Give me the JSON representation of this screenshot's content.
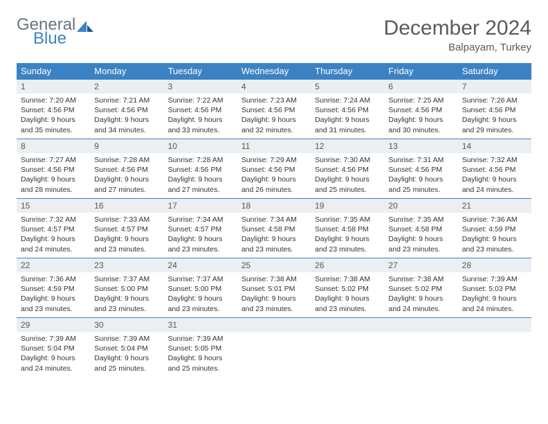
{
  "brand": {
    "word1": "General",
    "word2": "Blue",
    "accent_color": "#3b82c4",
    "gray_color": "#6b7280"
  },
  "title": "December 2024",
  "location": "Balpayam, Turkey",
  "colors": {
    "header_bg": "#3b82c4",
    "header_text": "#ffffff",
    "daynum_bg": "#eceff1",
    "rule": "#3b82c4",
    "text": "#333333"
  },
  "weekdays": [
    "Sunday",
    "Monday",
    "Tuesday",
    "Wednesday",
    "Thursday",
    "Friday",
    "Saturday"
  ],
  "weeks": [
    [
      {
        "n": "1",
        "sunrise": "Sunrise: 7:20 AM",
        "sunset": "Sunset: 4:56 PM",
        "day": "Daylight: 9 hours and 35 minutes."
      },
      {
        "n": "2",
        "sunrise": "Sunrise: 7:21 AM",
        "sunset": "Sunset: 4:56 PM",
        "day": "Daylight: 9 hours and 34 minutes."
      },
      {
        "n": "3",
        "sunrise": "Sunrise: 7:22 AM",
        "sunset": "Sunset: 4:56 PM",
        "day": "Daylight: 9 hours and 33 minutes."
      },
      {
        "n": "4",
        "sunrise": "Sunrise: 7:23 AM",
        "sunset": "Sunset: 4:56 PM",
        "day": "Daylight: 9 hours and 32 minutes."
      },
      {
        "n": "5",
        "sunrise": "Sunrise: 7:24 AM",
        "sunset": "Sunset: 4:56 PM",
        "day": "Daylight: 9 hours and 31 minutes."
      },
      {
        "n": "6",
        "sunrise": "Sunrise: 7:25 AM",
        "sunset": "Sunset: 4:56 PM",
        "day": "Daylight: 9 hours and 30 minutes."
      },
      {
        "n": "7",
        "sunrise": "Sunrise: 7:26 AM",
        "sunset": "Sunset: 4:56 PM",
        "day": "Daylight: 9 hours and 29 minutes."
      }
    ],
    [
      {
        "n": "8",
        "sunrise": "Sunrise: 7:27 AM",
        "sunset": "Sunset: 4:56 PM",
        "day": "Daylight: 9 hours and 28 minutes."
      },
      {
        "n": "9",
        "sunrise": "Sunrise: 7:28 AM",
        "sunset": "Sunset: 4:56 PM",
        "day": "Daylight: 9 hours and 27 minutes."
      },
      {
        "n": "10",
        "sunrise": "Sunrise: 7:28 AM",
        "sunset": "Sunset: 4:56 PM",
        "day": "Daylight: 9 hours and 27 minutes."
      },
      {
        "n": "11",
        "sunrise": "Sunrise: 7:29 AM",
        "sunset": "Sunset: 4:56 PM",
        "day": "Daylight: 9 hours and 26 minutes."
      },
      {
        "n": "12",
        "sunrise": "Sunrise: 7:30 AM",
        "sunset": "Sunset: 4:56 PM",
        "day": "Daylight: 9 hours and 25 minutes."
      },
      {
        "n": "13",
        "sunrise": "Sunrise: 7:31 AM",
        "sunset": "Sunset: 4:56 PM",
        "day": "Daylight: 9 hours and 25 minutes."
      },
      {
        "n": "14",
        "sunrise": "Sunrise: 7:32 AM",
        "sunset": "Sunset: 4:56 PM",
        "day": "Daylight: 9 hours and 24 minutes."
      }
    ],
    [
      {
        "n": "15",
        "sunrise": "Sunrise: 7:32 AM",
        "sunset": "Sunset: 4:57 PM",
        "day": "Daylight: 9 hours and 24 minutes."
      },
      {
        "n": "16",
        "sunrise": "Sunrise: 7:33 AM",
        "sunset": "Sunset: 4:57 PM",
        "day": "Daylight: 9 hours and 23 minutes."
      },
      {
        "n": "17",
        "sunrise": "Sunrise: 7:34 AM",
        "sunset": "Sunset: 4:57 PM",
        "day": "Daylight: 9 hours and 23 minutes."
      },
      {
        "n": "18",
        "sunrise": "Sunrise: 7:34 AM",
        "sunset": "Sunset: 4:58 PM",
        "day": "Daylight: 9 hours and 23 minutes."
      },
      {
        "n": "19",
        "sunrise": "Sunrise: 7:35 AM",
        "sunset": "Sunset: 4:58 PM",
        "day": "Daylight: 9 hours and 23 minutes."
      },
      {
        "n": "20",
        "sunrise": "Sunrise: 7:35 AM",
        "sunset": "Sunset: 4:58 PM",
        "day": "Daylight: 9 hours and 23 minutes."
      },
      {
        "n": "21",
        "sunrise": "Sunrise: 7:36 AM",
        "sunset": "Sunset: 4:59 PM",
        "day": "Daylight: 9 hours and 23 minutes."
      }
    ],
    [
      {
        "n": "22",
        "sunrise": "Sunrise: 7:36 AM",
        "sunset": "Sunset: 4:59 PM",
        "day": "Daylight: 9 hours and 23 minutes."
      },
      {
        "n": "23",
        "sunrise": "Sunrise: 7:37 AM",
        "sunset": "Sunset: 5:00 PM",
        "day": "Daylight: 9 hours and 23 minutes."
      },
      {
        "n": "24",
        "sunrise": "Sunrise: 7:37 AM",
        "sunset": "Sunset: 5:00 PM",
        "day": "Daylight: 9 hours and 23 minutes."
      },
      {
        "n": "25",
        "sunrise": "Sunrise: 7:38 AM",
        "sunset": "Sunset: 5:01 PM",
        "day": "Daylight: 9 hours and 23 minutes."
      },
      {
        "n": "26",
        "sunrise": "Sunrise: 7:38 AM",
        "sunset": "Sunset: 5:02 PM",
        "day": "Daylight: 9 hours and 23 minutes."
      },
      {
        "n": "27",
        "sunrise": "Sunrise: 7:38 AM",
        "sunset": "Sunset: 5:02 PM",
        "day": "Daylight: 9 hours and 24 minutes."
      },
      {
        "n": "28",
        "sunrise": "Sunrise: 7:39 AM",
        "sunset": "Sunset: 5:03 PM",
        "day": "Daylight: 9 hours and 24 minutes."
      }
    ],
    [
      {
        "n": "29",
        "sunrise": "Sunrise: 7:39 AM",
        "sunset": "Sunset: 5:04 PM",
        "day": "Daylight: 9 hours and 24 minutes."
      },
      {
        "n": "30",
        "sunrise": "Sunrise: 7:39 AM",
        "sunset": "Sunset: 5:04 PM",
        "day": "Daylight: 9 hours and 25 minutes."
      },
      {
        "n": "31",
        "sunrise": "Sunrise: 7:39 AM",
        "sunset": "Sunset: 5:05 PM",
        "day": "Daylight: 9 hours and 25 minutes."
      },
      {
        "empty": true
      },
      {
        "empty": true
      },
      {
        "empty": true
      },
      {
        "empty": true
      }
    ]
  ]
}
